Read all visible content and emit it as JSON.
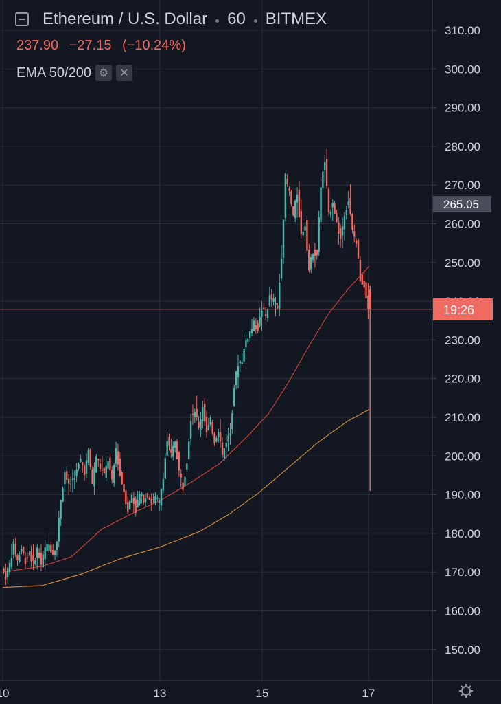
{
  "header": {
    "symbol": "Ethereum / U.S. Dollar",
    "interval": "60",
    "exchange": "BITMEX",
    "last_price": "237.90",
    "change": "−27.15",
    "change_pct": "(−10.24%)",
    "indicator": "EMA 50/200"
  },
  "colors": {
    "background": "#131722",
    "grid": "#2a2e39",
    "up": "#4db6ac",
    "down": "#ef6a61",
    "ema50": "#c6423a",
    "ema200": "#d88a31",
    "text": "#d1d4dc"
  },
  "price_axis": {
    "labels": [
      "310.00",
      "300.00",
      "290.00",
      "280.00",
      "270.00",
      "260.00",
      "250.00",
      "240.00",
      "230.00",
      "220.00",
      "210.00",
      "200.00",
      "190.00",
      "180.00",
      "170.00",
      "160.00",
      "150.00"
    ],
    "highlight_label": "265.05",
    "current_label": "19:26"
  },
  "time_axis": {
    "labels": [
      "10",
      "13",
      "15",
      "17"
    ]
  },
  "icons": {
    "settings": "settings-gear-icon"
  },
  "chart_data": {
    "type": "candlestick",
    "symbol": "Ethereum / U.S. Dollar",
    "ylim": [
      142,
      315
    ],
    "x_ticks": [
      "10",
      "13",
      "15",
      "17"
    ],
    "path": [
      [
        0.0,
        171
      ],
      [
        0.2,
        169
      ],
      [
        0.4,
        172
      ],
      [
        0.6,
        177
      ],
      [
        0.8,
        173
      ],
      [
        1.0,
        176
      ],
      [
        1.2,
        173
      ],
      [
        1.4,
        175
      ],
      [
        1.6,
        172
      ],
      [
        1.8,
        176
      ],
      [
        2.0,
        172
      ],
      [
        2.2,
        176
      ],
      [
        2.4,
        177
      ],
      [
        2.6,
        175
      ],
      [
        2.8,
        178
      ],
      [
        3.0,
        189
      ],
      [
        3.2,
        196
      ],
      [
        3.4,
        192
      ],
      [
        3.6,
        194
      ],
      [
        3.8,
        196
      ],
      [
        4.0,
        199
      ],
      [
        4.2,
        196
      ],
      [
        4.4,
        201
      ],
      [
        4.6,
        193
      ],
      [
        4.8,
        200
      ],
      [
        5.0,
        197
      ],
      [
        5.2,
        195
      ],
      [
        5.4,
        199
      ],
      [
        5.6,
        193
      ],
      [
        5.8,
        202
      ],
      [
        6.0,
        195
      ],
      [
        6.2,
        191
      ],
      [
        6.4,
        186
      ],
      [
        6.6,
        190
      ],
      [
        6.8,
        186
      ],
      [
        7.0,
        190
      ],
      [
        7.2,
        189
      ],
      [
        7.4,
        190
      ],
      [
        7.6,
        188
      ],
      [
        7.8,
        189
      ],
      [
        8.0,
        188
      ],
      [
        8.2,
        195
      ],
      [
        8.4,
        204
      ],
      [
        8.6,
        200
      ],
      [
        8.8,
        204
      ],
      [
        9.0,
        196
      ],
      [
        9.2,
        192
      ],
      [
        9.4,
        199
      ],
      [
        9.6,
        210
      ],
      [
        9.8,
        212
      ],
      [
        10.0,
        207
      ],
      [
        10.2,
        213
      ],
      [
        10.4,
        206
      ],
      [
        10.6,
        209
      ],
      [
        10.8,
        204
      ],
      [
        11.0,
        207
      ],
      [
        11.2,
        200
      ],
      [
        11.4,
        204
      ],
      [
        11.6,
        206
      ],
      [
        11.8,
        218
      ],
      [
        12.0,
        224
      ],
      [
        12.2,
        225
      ],
      [
        12.4,
        230
      ],
      [
        12.6,
        232
      ],
      [
        12.8,
        234
      ],
      [
        13.0,
        233
      ],
      [
        13.2,
        238
      ],
      [
        13.4,
        236
      ],
      [
        13.6,
        241
      ],
      [
        13.8,
        240
      ],
      [
        14.0,
        238
      ],
      [
        14.2,
        252
      ],
      [
        14.4,
        272
      ],
      [
        14.6,
        268
      ],
      [
        14.8,
        262
      ],
      [
        15.0,
        268
      ],
      [
        15.2,
        257
      ],
      [
        15.4,
        260
      ],
      [
        15.6,
        248
      ],
      [
        15.8,
        253
      ],
      [
        16.0,
        252
      ],
      [
        16.2,
        270
      ],
      [
        16.4,
        276
      ],
      [
        16.6,
        262
      ],
      [
        16.8,
        266
      ],
      [
        17.0,
        260
      ],
      [
        17.2,
        256
      ],
      [
        17.4,
        263
      ],
      [
        17.6,
        266
      ],
      [
        17.8,
        258
      ],
      [
        18.0,
        255
      ],
      [
        18.2,
        246
      ],
      [
        18.4,
        244
      ],
      [
        18.6,
        239
      ]
    ],
    "ema50": [
      [
        0.0,
        170
      ],
      [
        2.0,
        171.5
      ],
      [
        3.5,
        174
      ],
      [
        5.0,
        181
      ],
      [
        6.5,
        185
      ],
      [
        8.0,
        188.5
      ],
      [
        9.5,
        193
      ],
      [
        11.0,
        198
      ],
      [
        12.5,
        205.5
      ],
      [
        13.5,
        211
      ],
      [
        14.5,
        219
      ],
      [
        15.5,
        228
      ],
      [
        16.5,
        236.5
      ],
      [
        17.5,
        243
      ],
      [
        18.6,
        249
      ]
    ],
    "ema200": [
      [
        0.0,
        166
      ],
      [
        2.0,
        166.5
      ],
      [
        4.0,
        169.5
      ],
      [
        6.0,
        173.5
      ],
      [
        8.0,
        176.5
      ],
      [
        10.0,
        180.5
      ],
      [
        11.5,
        185
      ],
      [
        13.0,
        190.5
      ],
      [
        14.5,
        197
      ],
      [
        16.0,
        203.5
      ],
      [
        17.5,
        209
      ],
      [
        18.6,
        212
      ]
    ],
    "last_candle": {
      "open": 243,
      "high": 244,
      "low": 191,
      "close": 238
    },
    "last_price": 237.9,
    "highlighted_price": 265.05
  }
}
